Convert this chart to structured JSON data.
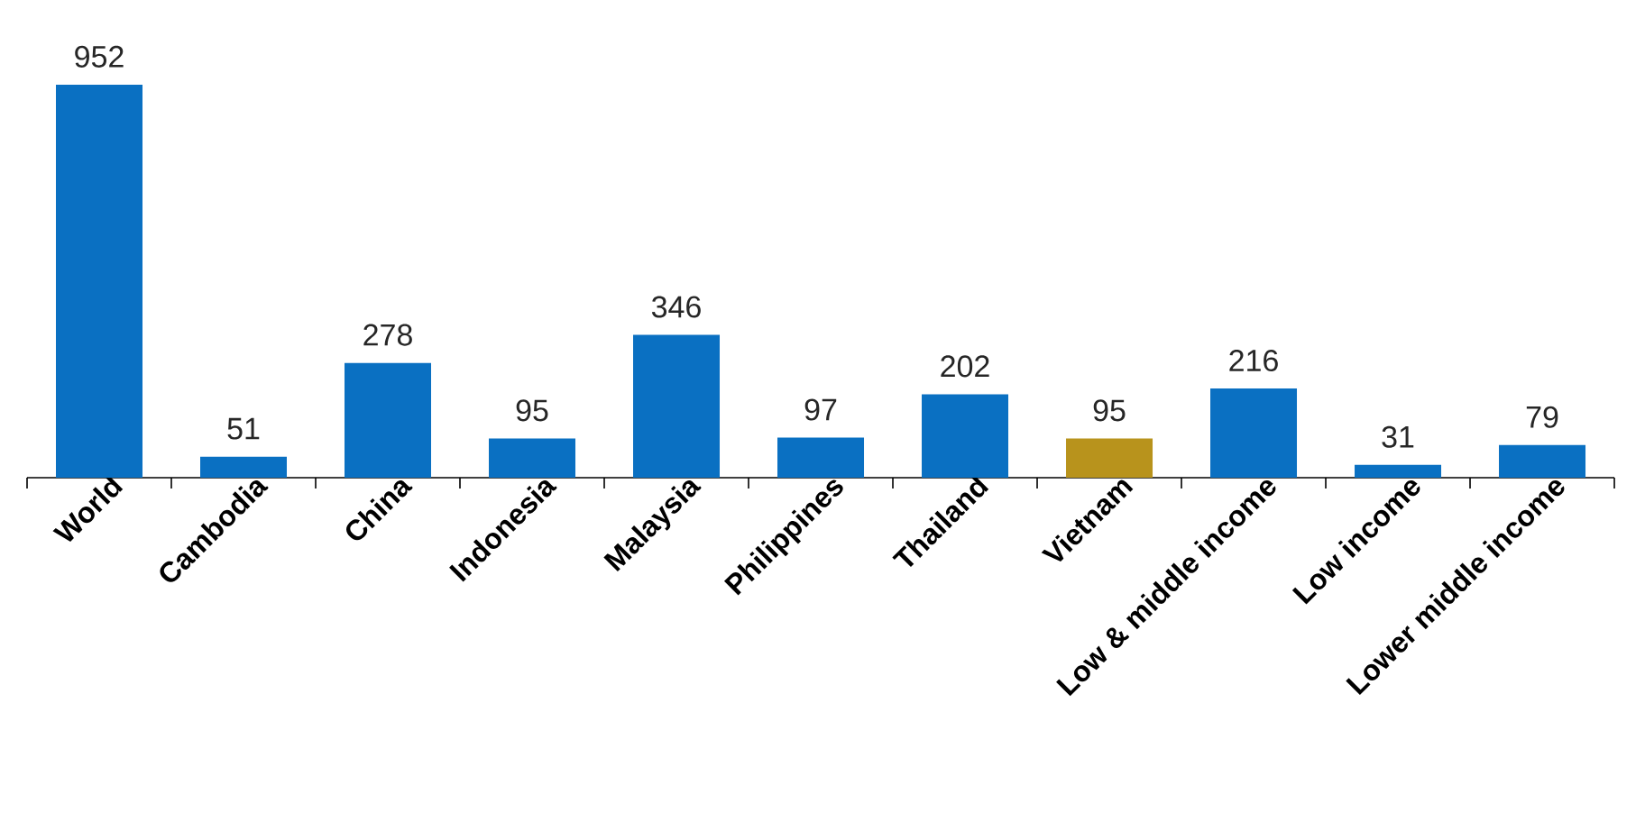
{
  "chart_data": {
    "type": "bar",
    "categories": [
      "World",
      "Cambodia",
      "China",
      "Indonesia",
      "Malaysia",
      "Philippines",
      "Thailand",
      "Vietnam",
      "Low & middle income",
      "Low income",
      "Lower middle income"
    ],
    "values": [
      952,
      51,
      278,
      95,
      346,
      97,
      202,
      95,
      216,
      31,
      79
    ],
    "colors": [
      "#0a70c2",
      "#0a70c2",
      "#0a70c2",
      "#0a70c2",
      "#0a70c2",
      "#0a70c2",
      "#0a70c2",
      "#b8931c",
      "#0a70c2",
      "#0a70c2",
      "#0a70c2"
    ],
    "value_labels": [
      "952",
      "51",
      "278",
      "95",
      "346",
      "97",
      "202",
      "95",
      "216",
      "31",
      "79"
    ],
    "grid": false
  }
}
